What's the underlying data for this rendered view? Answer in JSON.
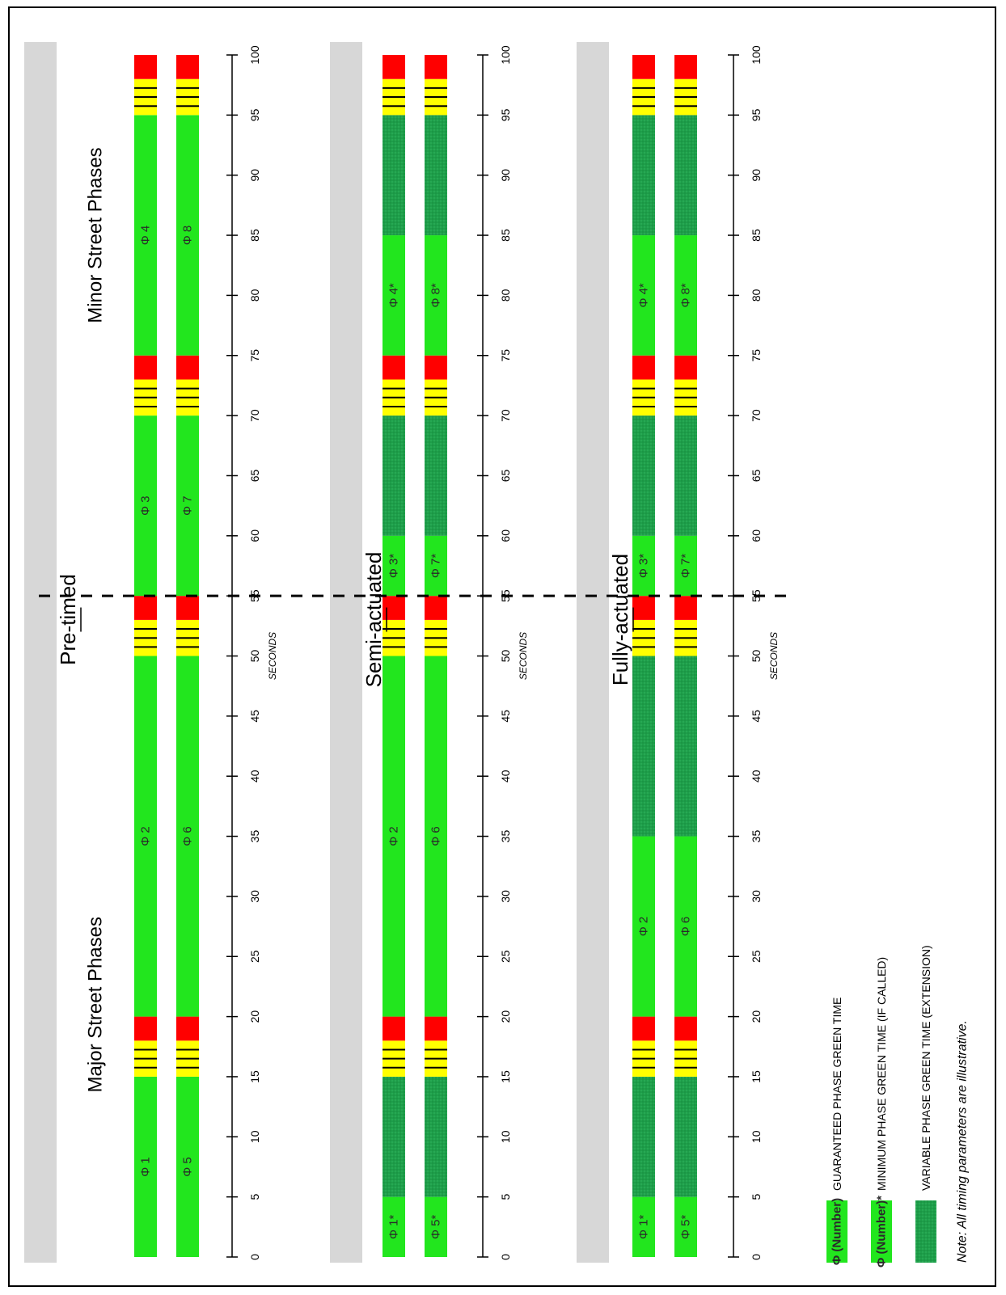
{
  "colors": {
    "guaranteed_green": "#22e61e",
    "variable_green": "#1e9e4a",
    "yellow": "#ffff00",
    "red": "#ff0000",
    "band_gray": "#d7d7d7"
  },
  "axis": {
    "min": 0,
    "max": 100,
    "step": 5,
    "label": "SECONDS",
    "ticks": [
      "0",
      "5",
      "10",
      "15",
      "20",
      "25",
      "30",
      "35",
      "40",
      "45",
      "50",
      "55",
      "60",
      "65",
      "70",
      "75",
      "80",
      "85",
      "90",
      "95",
      "100"
    ]
  },
  "headers": {
    "major": "Major Street Phases",
    "minor": "Minor Street Phases"
  },
  "dashed_marker_value": 55,
  "panels": [
    {
      "title": "Pre-timed",
      "rows": [
        {
          "segments": [
            {
              "type": "guaranteed",
              "start": 0,
              "end": 15,
              "label": "Φ 1"
            },
            {
              "type": "yellow",
              "start": 15,
              "end": 18
            },
            {
              "type": "red",
              "start": 18,
              "end": 20
            },
            {
              "type": "guaranteed",
              "start": 20,
              "end": 50,
              "label": "Φ 2"
            },
            {
              "type": "yellow",
              "start": 50,
              "end": 53
            },
            {
              "type": "red",
              "start": 53,
              "end": 55
            },
            {
              "type": "guaranteed",
              "start": 55,
              "end": 70,
              "label": "Φ 3"
            },
            {
              "type": "yellow",
              "start": 70,
              "end": 73
            },
            {
              "type": "red",
              "start": 73,
              "end": 75
            },
            {
              "type": "guaranteed",
              "start": 75,
              "end": 95,
              "label": "Φ 4"
            },
            {
              "type": "yellow",
              "start": 95,
              "end": 98
            },
            {
              "type": "red",
              "start": 98,
              "end": 100
            }
          ]
        },
        {
          "segments": [
            {
              "type": "guaranteed",
              "start": 0,
              "end": 15,
              "label": "Φ 5"
            },
            {
              "type": "yellow",
              "start": 15,
              "end": 18
            },
            {
              "type": "red",
              "start": 18,
              "end": 20
            },
            {
              "type": "guaranteed",
              "start": 20,
              "end": 50,
              "label": "Φ 6"
            },
            {
              "type": "yellow",
              "start": 50,
              "end": 53
            },
            {
              "type": "red",
              "start": 53,
              "end": 55
            },
            {
              "type": "guaranteed",
              "start": 55,
              "end": 70,
              "label": "Φ 7"
            },
            {
              "type": "yellow",
              "start": 70,
              "end": 73
            },
            {
              "type": "red",
              "start": 73,
              "end": 75
            },
            {
              "type": "guaranteed",
              "start": 75,
              "end": 95,
              "label": "Φ 8"
            },
            {
              "type": "yellow",
              "start": 95,
              "end": 98
            },
            {
              "type": "red",
              "start": 98,
              "end": 100
            }
          ]
        }
      ]
    },
    {
      "title": "Semi-actuated",
      "rows": [
        {
          "segments": [
            {
              "type": "minimum",
              "start": 0,
              "end": 5,
              "label": "Φ 1*"
            },
            {
              "type": "variable",
              "start": 5,
              "end": 15
            },
            {
              "type": "yellow",
              "start": 15,
              "end": 18
            },
            {
              "type": "red",
              "start": 18,
              "end": 20
            },
            {
              "type": "guaranteed",
              "start": 20,
              "end": 50,
              "label": "Φ 2"
            },
            {
              "type": "yellow",
              "start": 50,
              "end": 53
            },
            {
              "type": "red",
              "start": 53,
              "end": 55
            },
            {
              "type": "minimum",
              "start": 55,
              "end": 60,
              "label": "Φ 3*"
            },
            {
              "type": "variable",
              "start": 60,
              "end": 70
            },
            {
              "type": "yellow",
              "start": 70,
              "end": 73
            },
            {
              "type": "red",
              "start": 73,
              "end": 75
            },
            {
              "type": "minimum",
              "start": 75,
              "end": 85,
              "label": "Φ 4*"
            },
            {
              "type": "variable",
              "start": 85,
              "end": 95
            },
            {
              "type": "yellow",
              "start": 95,
              "end": 98
            },
            {
              "type": "red",
              "start": 98,
              "end": 100
            }
          ]
        },
        {
          "segments": [
            {
              "type": "minimum",
              "start": 0,
              "end": 5,
              "label": "Φ 5*"
            },
            {
              "type": "variable",
              "start": 5,
              "end": 15
            },
            {
              "type": "yellow",
              "start": 15,
              "end": 18
            },
            {
              "type": "red",
              "start": 18,
              "end": 20
            },
            {
              "type": "guaranteed",
              "start": 20,
              "end": 50,
              "label": "Φ 6"
            },
            {
              "type": "yellow",
              "start": 50,
              "end": 53
            },
            {
              "type": "red",
              "start": 53,
              "end": 55
            },
            {
              "type": "minimum",
              "start": 55,
              "end": 60,
              "label": "Φ 7*"
            },
            {
              "type": "variable",
              "start": 60,
              "end": 70
            },
            {
              "type": "yellow",
              "start": 70,
              "end": 73
            },
            {
              "type": "red",
              "start": 73,
              "end": 75
            },
            {
              "type": "minimum",
              "start": 75,
              "end": 85,
              "label": "Φ 8*"
            },
            {
              "type": "variable",
              "start": 85,
              "end": 95
            },
            {
              "type": "yellow",
              "start": 95,
              "end": 98
            },
            {
              "type": "red",
              "start": 98,
              "end": 100
            }
          ]
        }
      ]
    },
    {
      "title": "Fully-actuated",
      "rows": [
        {
          "segments": [
            {
              "type": "minimum",
              "start": 0,
              "end": 5,
              "label": "Φ 1*"
            },
            {
              "type": "variable",
              "start": 5,
              "end": 15
            },
            {
              "type": "yellow",
              "start": 15,
              "end": 18
            },
            {
              "type": "red",
              "start": 18,
              "end": 20
            },
            {
              "type": "guaranteed",
              "start": 20,
              "end": 35,
              "label": "Φ 2"
            },
            {
              "type": "variable",
              "start": 35,
              "end": 50
            },
            {
              "type": "yellow",
              "start": 50,
              "end": 53
            },
            {
              "type": "red",
              "start": 53,
              "end": 55
            },
            {
              "type": "minimum",
              "start": 55,
              "end": 60,
              "label": "Φ 3*"
            },
            {
              "type": "variable",
              "start": 60,
              "end": 70
            },
            {
              "type": "yellow",
              "start": 70,
              "end": 73
            },
            {
              "type": "red",
              "start": 73,
              "end": 75
            },
            {
              "type": "minimum",
              "start": 75,
              "end": 85,
              "label": "Φ 4*"
            },
            {
              "type": "variable",
              "start": 85,
              "end": 95
            },
            {
              "type": "yellow",
              "start": 95,
              "end": 98
            },
            {
              "type": "red",
              "start": 98,
              "end": 100
            }
          ]
        },
        {
          "segments": [
            {
              "type": "minimum",
              "start": 0,
              "end": 5,
              "label": "Φ 5*"
            },
            {
              "type": "variable",
              "start": 5,
              "end": 15
            },
            {
              "type": "yellow",
              "start": 15,
              "end": 18
            },
            {
              "type": "red",
              "start": 18,
              "end": 20
            },
            {
              "type": "guaranteed",
              "start": 20,
              "end": 35,
              "label": "Φ 6"
            },
            {
              "type": "variable",
              "start": 35,
              "end": 50
            },
            {
              "type": "yellow",
              "start": 50,
              "end": 53
            },
            {
              "type": "red",
              "start": 53,
              "end": 55
            },
            {
              "type": "minimum",
              "start": 55,
              "end": 60,
              "label": "Φ 7*"
            },
            {
              "type": "variable",
              "start": 60,
              "end": 70
            },
            {
              "type": "yellow",
              "start": 70,
              "end": 73
            },
            {
              "type": "red",
              "start": 73,
              "end": 75
            },
            {
              "type": "minimum",
              "start": 75,
              "end": 85,
              "label": "Φ 8*"
            },
            {
              "type": "variable",
              "start": 85,
              "end": 95
            },
            {
              "type": "yellow",
              "start": 95,
              "end": 98
            },
            {
              "type": "red",
              "start": 98,
              "end": 100
            }
          ]
        }
      ]
    }
  ],
  "legend": [
    {
      "swatch": "guaranteed",
      "swatch_label": "Φ (Number)",
      "text": "GUARANTEED PHASE GREEN TIME"
    },
    {
      "swatch": "minimum",
      "swatch_label": "Φ (Number)*",
      "text": "MINIMUM PHASE GREEN TIME (IF CALLED)"
    },
    {
      "swatch": "variable",
      "swatch_label": "",
      "text": "VARIABLE PHASE GREEN TIME (EXTENSION)"
    }
  ],
  "note": "Note: All timing parameters are illustrative."
}
